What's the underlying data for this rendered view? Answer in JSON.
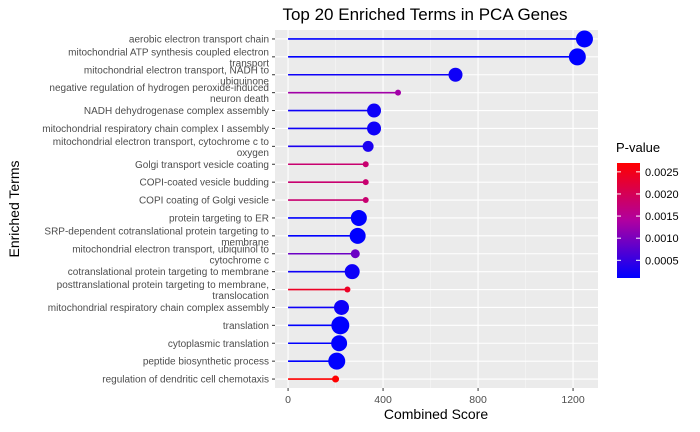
{
  "chart_data": {
    "type": "lollipop",
    "title": "Top 20 Enriched Terms in PCA Genes",
    "xlabel": "Combined Score",
    "ylabel": "Enriched Terms",
    "xlim": [
      -55,
      1305
    ],
    "xticks": [
      0,
      400,
      800,
      1200
    ],
    "grid": true,
    "legend": {
      "title": "P-value",
      "position": "right",
      "ticks": [
        "0.0025",
        "0.0020",
        "0.0015",
        "0.0010",
        "0.0005"
      ],
      "range": [
        0.0001,
        0.0027
      ],
      "color_low": "#0000ff",
      "color_high": "#ff0000"
    },
    "terms": [
      {
        "label": [
          "aerobic electron transport chain"
        ],
        "score": 1248,
        "pvalue": 0.0001,
        "size": 8.5
      },
      {
        "label": [
          "mitochondrial ATP synthesis coupled electron",
          "transport"
        ],
        "score": 1218,
        "pvalue": 0.0001,
        "size": 8.5
      },
      {
        "label": [
          "mitochondrial electron transport, NADH to",
          "ubiquinone"
        ],
        "score": 705,
        "pvalue": 0.0002,
        "size": 7
      },
      {
        "label": [
          "negative regulation of hydrogen peroxide-induced",
          "neuron death"
        ],
        "score": 463,
        "pvalue": 0.0013,
        "size": 3
      },
      {
        "label": [
          "NADH dehydrogenase complex assembly"
        ],
        "score": 362,
        "pvalue": 0.0002,
        "size": 7
      },
      {
        "label": [
          "mitochondrial respiratory chain complex I assembly"
        ],
        "score": 362,
        "pvalue": 0.0002,
        "size": 7
      },
      {
        "label": [
          "mitochondrial electron transport, cytochrome c to",
          "oxygen"
        ],
        "score": 337,
        "pvalue": 0.0003,
        "size": 5.5
      },
      {
        "label": [
          "Golgi transport vesicle coating"
        ],
        "score": 327,
        "pvalue": 0.0018,
        "size": 3
      },
      {
        "label": [
          "COPI-coated vesicle budding"
        ],
        "score": 327,
        "pvalue": 0.0018,
        "size": 3
      },
      {
        "label": [
          "COPI coating of Golgi vesicle"
        ],
        "score": 327,
        "pvalue": 0.0018,
        "size": 3
      },
      {
        "label": [
          "protein targeting to ER"
        ],
        "score": 298,
        "pvalue": 0.0001,
        "size": 8
      },
      {
        "label": [
          "SRP-dependent cotranslational protein targeting to",
          "membrane"
        ],
        "score": 293,
        "pvalue": 0.0001,
        "size": 8
      },
      {
        "label": [
          "mitochondrial electron transport, ubiquinol to",
          "cytochrome c"
        ],
        "score": 283,
        "pvalue": 0.0009,
        "size": 4.5
      },
      {
        "label": [
          "cotranslational protein targeting to membrane"
        ],
        "score": 270,
        "pvalue": 0.0002,
        "size": 7.5
      },
      {
        "label": [
          "posttranslational protein targeting to membrane,",
          "translocation"
        ],
        "score": 250,
        "pvalue": 0.0024,
        "size": 3
      },
      {
        "label": [
          "mitochondrial respiratory chain complex assembly"
        ],
        "score": 225,
        "pvalue": 0.0002,
        "size": 7.5
      },
      {
        "label": [
          "translation"
        ],
        "score": 220,
        "pvalue": 0.0001,
        "size": 9
      },
      {
        "label": [
          "cytoplasmic translation"
        ],
        "score": 215,
        "pvalue": 0.0001,
        "size": 8
      },
      {
        "label": [
          "peptide biosynthetic process"
        ],
        "score": 205,
        "pvalue": 0.0001,
        "size": 8.5
      },
      {
        "label": [
          "regulation of dendritic cell chemotaxis"
        ],
        "score": 200,
        "pvalue": 0.0027,
        "size": 3.5
      }
    ]
  }
}
